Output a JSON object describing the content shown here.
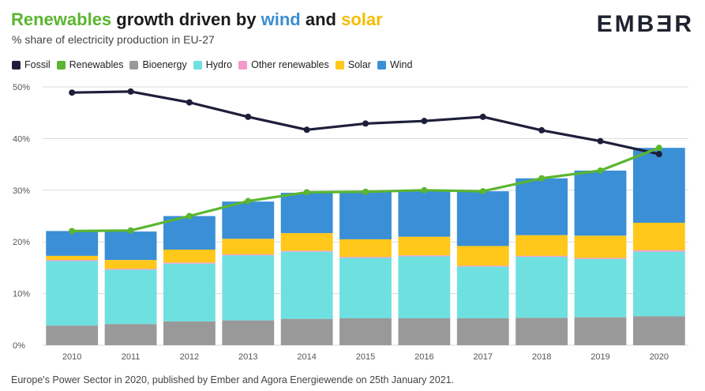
{
  "header": {
    "title_parts": [
      "Renewables",
      " growth driven by ",
      "wind",
      " and ",
      "solar"
    ],
    "subtitle": "% share of electricity production in EU-27",
    "logo": "EMBƎR"
  },
  "footer": {
    "source": "Europe's Power Sector in 2020, published by Ember and Agora Energiewende on 25th January 2021."
  },
  "legend": [
    {
      "label": "Fossil",
      "color": "#1e1e3c"
    },
    {
      "label": "Renewables",
      "color": "#5bb531"
    },
    {
      "label": "Bioenergy",
      "color": "#999999"
    },
    {
      "label": "Hydro",
      "color": "#6fe0e0"
    },
    {
      "label": "Other renewables",
      "color": "#f49ac9"
    },
    {
      "label": "Solar",
      "color": "#ffc81a"
    },
    {
      "label": "Wind",
      "color": "#3a8fd6"
    }
  ],
  "chart_data": {
    "type": "bar",
    "subtype": "stacked bar with line overlay",
    "title": "Renewables growth driven by wind and solar",
    "subtitle": "% share of electricity production in EU-27",
    "categories": [
      "2010",
      "2011",
      "2012",
      "2013",
      "2014",
      "2015",
      "2016",
      "2017",
      "2018",
      "2019",
      "2020"
    ],
    "ylim": [
      0,
      50
    ],
    "yticks": [
      "0%",
      "10%",
      "20%",
      "30%",
      "40%",
      "50%"
    ],
    "grid": true,
    "legend_position": "top-left",
    "stacked_series": [
      {
        "name": "Bioenergy",
        "color": "#999999",
        "values": [
          3.8,
          4.1,
          4.6,
          4.8,
          5.1,
          5.2,
          5.2,
          5.2,
          5.3,
          5.4,
          5.6
        ]
      },
      {
        "name": "Hydro",
        "color": "#6fe0e0",
        "values": [
          12.5,
          10.5,
          11.2,
          12.6,
          13.0,
          11.7,
          12.0,
          10.0,
          11.8,
          11.3,
          12.5
        ]
      },
      {
        "name": "Other renewables",
        "color": "#f49ac9",
        "values": [
          0.2,
          0.2,
          0.2,
          0.2,
          0.2,
          0.2,
          0.2,
          0.2,
          0.2,
          0.2,
          0.3
        ]
      },
      {
        "name": "Solar",
        "color": "#ffc81a",
        "values": [
          0.8,
          1.7,
          2.5,
          3.0,
          3.4,
          3.4,
          3.6,
          3.8,
          4.0,
          4.3,
          5.3
        ]
      },
      {
        "name": "Wind",
        "color": "#3a8fd6",
        "values": [
          4.8,
          5.5,
          6.5,
          7.2,
          7.8,
          9.2,
          9.0,
          10.6,
          11.0,
          12.6,
          14.5
        ]
      }
    ],
    "line_series": [
      {
        "name": "Fossil",
        "color": "#1e1e3c",
        "values": [
          48.9,
          49.1,
          47.0,
          44.2,
          41.7,
          42.9,
          43.4,
          44.2,
          41.6,
          39.5,
          37.0
        ]
      },
      {
        "name": "Renewables",
        "color": "#5bb531",
        "values": [
          22.1,
          22.2,
          25.0,
          27.9,
          29.6,
          29.7,
          30.0,
          29.8,
          32.3,
          33.8,
          38.2
        ]
      }
    ]
  }
}
